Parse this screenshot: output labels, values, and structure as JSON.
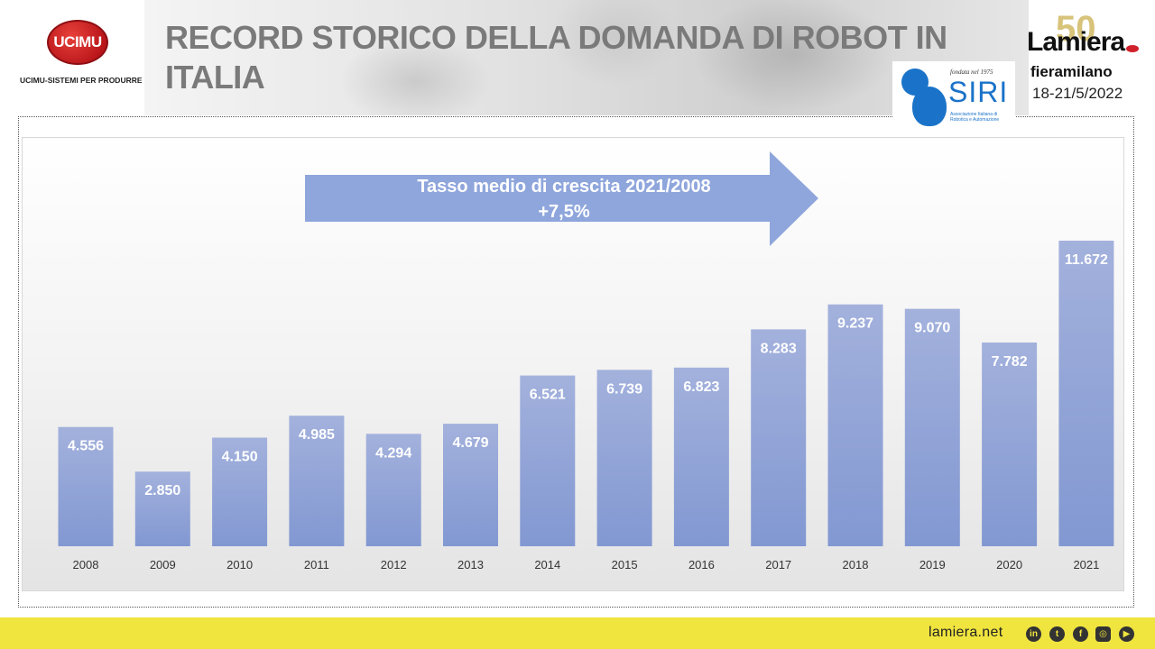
{
  "header": {
    "title": "RECORD STORICO DELLA DOMANDA DI ROBOT IN ITALIA",
    "ucimu_logo_text": "UCIMU",
    "ucimu_subtitle": "UCIMU-SISTEMI PER PRODURRE",
    "lamiera_logo": {
      "fifty": "50",
      "word": "Lamiera",
      "venue": "fieramilano",
      "dates": "18-21/5/2022"
    },
    "siri_logo": {
      "founded": "fondata nel 1975",
      "word": "SIRI",
      "desc": "Associazione Italiana di Robotica e Automazione"
    }
  },
  "annotation": {
    "line1": "Tasso medio di crescita 2021/2008",
    "line2": "+7,5%"
  },
  "footer": {
    "url": "lamiera.net",
    "social_icons": [
      "linkedin-icon",
      "twitter-icon",
      "facebook-icon",
      "instagram-icon",
      "youtube-icon"
    ]
  },
  "colors": {
    "bar": "#8298d2",
    "bar_top": "#a3b1dc",
    "arrow": "#8fa6dc",
    "footer": "#f0e43f",
    "title": "#7a7a7a"
  },
  "chart_data": {
    "type": "bar",
    "categories": [
      "2008",
      "2009",
      "2010",
      "2011",
      "2012",
      "2013",
      "2014",
      "2015",
      "2016",
      "2017",
      "2018",
      "2019",
      "2020",
      "2021"
    ],
    "values": [
      4556,
      2850,
      4150,
      4985,
      4294,
      4679,
      6521,
      6739,
      6823,
      8283,
      9237,
      9070,
      7782,
      11672
    ],
    "value_labels": [
      "4.556",
      "2.850",
      "4.150",
      "4.985",
      "4.294",
      "4.679",
      "6.521",
      "6.739",
      "6.823",
      "8.283",
      "9.237",
      "9.070",
      "7.782",
      "11.672"
    ],
    "title": "",
    "xlabel": "",
    "ylabel": "",
    "ylim": [
      0,
      12000
    ],
    "grid": false,
    "legend": "none"
  }
}
